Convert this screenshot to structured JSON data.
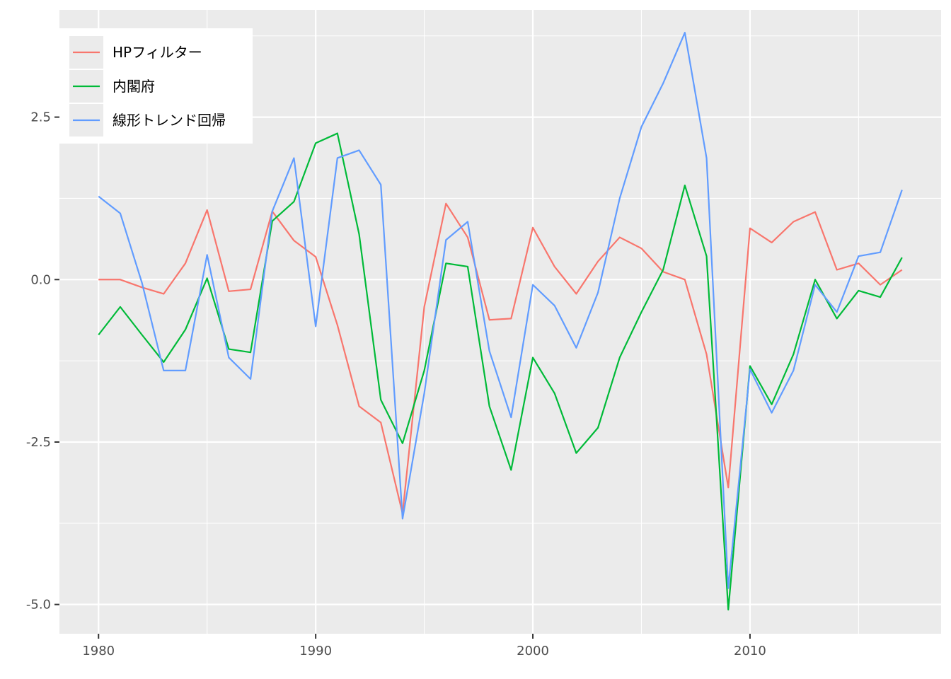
{
  "chart_data": {
    "type": "line",
    "title": "",
    "xlabel": "",
    "ylabel": "",
    "xlim": [
      1978.2,
      2018.8
    ],
    "ylim": [
      -5.45,
      4.15
    ],
    "x_ticks": [
      1980,
      1990,
      2000,
      2010
    ],
    "x_tick_labels": [
      "1980",
      "1990",
      "2000",
      "2010"
    ],
    "y_ticks": [
      2.5,
      0,
      -2.5,
      -5
    ],
    "y_tick_labels": [
      "2.5",
      "0.0",
      "-2.5",
      "-5.0"
    ],
    "grid": true,
    "legend_position": "top-left",
    "x": [
      1980,
      1981,
      1982,
      1983,
      1984,
      1985,
      1986,
      1987,
      1988,
      1989,
      1990,
      1991,
      1992,
      1993,
      1994,
      1995,
      1996,
      1997,
      1998,
      1999,
      2000,
      2001,
      2002,
      2003,
      2004,
      2005,
      2006,
      2007,
      2008,
      2009,
      2010,
      2011,
      2012,
      2013,
      2014,
      2015,
      2016,
      2017
    ],
    "series": [
      {
        "name": "HPフィルター",
        "color": "#F8766D",
        "values": [
          0.0,
          0.0,
          -0.12,
          -0.22,
          0.25,
          1.07,
          -0.18,
          -0.15,
          1.05,
          0.6,
          0.35,
          -0.7,
          -1.95,
          -2.2,
          -3.6,
          -0.42,
          1.17,
          0.65,
          -0.62,
          -0.6,
          0.8,
          0.2,
          -0.22,
          0.28,
          0.65,
          0.48,
          0.12,
          0.0,
          -1.15,
          -3.2,
          0.79,
          0.57,
          0.89,
          1.04,
          0.15,
          0.25,
          -0.08,
          0.15
        ]
      },
      {
        "name": "内閣府",
        "color": "#00BA38",
        "values": [
          -0.85,
          -0.42,
          -0.85,
          -1.27,
          -0.77,
          0.02,
          -1.07,
          -1.12,
          0.9,
          1.2,
          2.1,
          2.25,
          0.7,
          -1.85,
          -2.52,
          -1.4,
          0.25,
          0.2,
          -1.95,
          -2.93,
          -1.2,
          -1.75,
          -2.67,
          -2.28,
          -1.2,
          -0.5,
          0.15,
          1.45,
          0.36,
          -5.08,
          -1.33,
          -1.92,
          -1.15,
          0.0,
          -0.6,
          -0.17,
          -0.27,
          0.34
        ]
      },
      {
        "name": "線形トレンド回帰",
        "color": "#619CFF",
        "values": [
          1.28,
          1.02,
          -0.05,
          -1.4,
          -1.4,
          0.38,
          -1.2,
          -1.53,
          1.05,
          1.87,
          -0.72,
          1.87,
          1.99,
          1.46,
          -3.68,
          -1.75,
          0.61,
          0.89,
          -1.1,
          -2.12,
          -0.08,
          -0.4,
          -1.05,
          -0.2,
          1.25,
          2.35,
          3.02,
          3.8,
          1.87,
          -4.75,
          -1.38,
          -2.05,
          -1.4,
          -0.08,
          -0.5,
          0.36,
          0.42,
          1.38
        ]
      }
    ]
  }
}
